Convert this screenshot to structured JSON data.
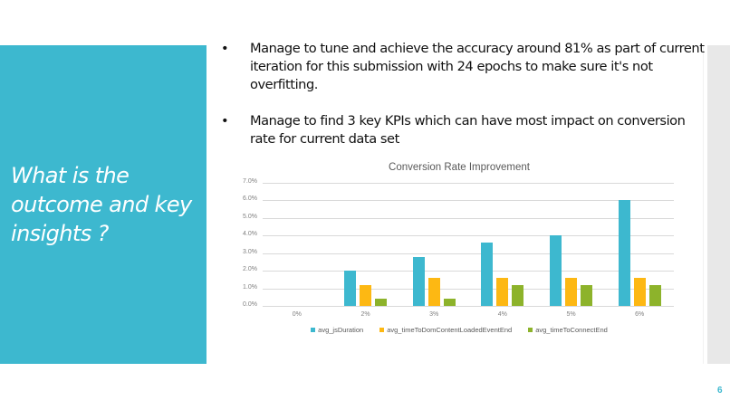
{
  "slide": {
    "title": "What is the outcome and key insights ?",
    "page_number": "6",
    "accent_color": "#3DB8CF",
    "bullets": [
      {
        "marker": "•",
        "text": "Manage to tune and achieve the accuracy around 81% as part of current iteration for this submission with 24 epochs to make sure it's not overfitting."
      },
      {
        "marker": "•",
        "text": "Manage to find 3 key KPIs which can have most impact on conversion rate for current data set"
      }
    ]
  },
  "chart_data": {
    "type": "bar",
    "title": "Conversion Rate Improvement",
    "xlabel": "",
    "ylabel": "",
    "categories": [
      "0%",
      "2%",
      "3%",
      "4%",
      "5%",
      "6%"
    ],
    "series": [
      {
        "name": "avg_jsDuration",
        "color": "#3DB8CF",
        "values": [
          0.0,
          2.0,
          2.8,
          3.6,
          4.0,
          6.0
        ]
      },
      {
        "name": "avg_timeToDomContentLoadedEventEnd",
        "color": "#FDB813",
        "values": [
          0.0,
          1.2,
          1.6,
          1.6,
          1.6,
          1.6
        ]
      },
      {
        "name": "avg_timeToConnectEnd",
        "color": "#8DB32B",
        "values": [
          0.0,
          0.4,
          0.4,
          1.2,
          1.2,
          1.2
        ]
      }
    ],
    "yticks": [
      "0.0%",
      "1.0%",
      "2.0%",
      "3.0%",
      "4.0%",
      "5.0%",
      "6.0%",
      "7.0%"
    ],
    "ylim": [
      0,
      7
    ],
    "grid": true,
    "legend_position": "bottom"
  }
}
